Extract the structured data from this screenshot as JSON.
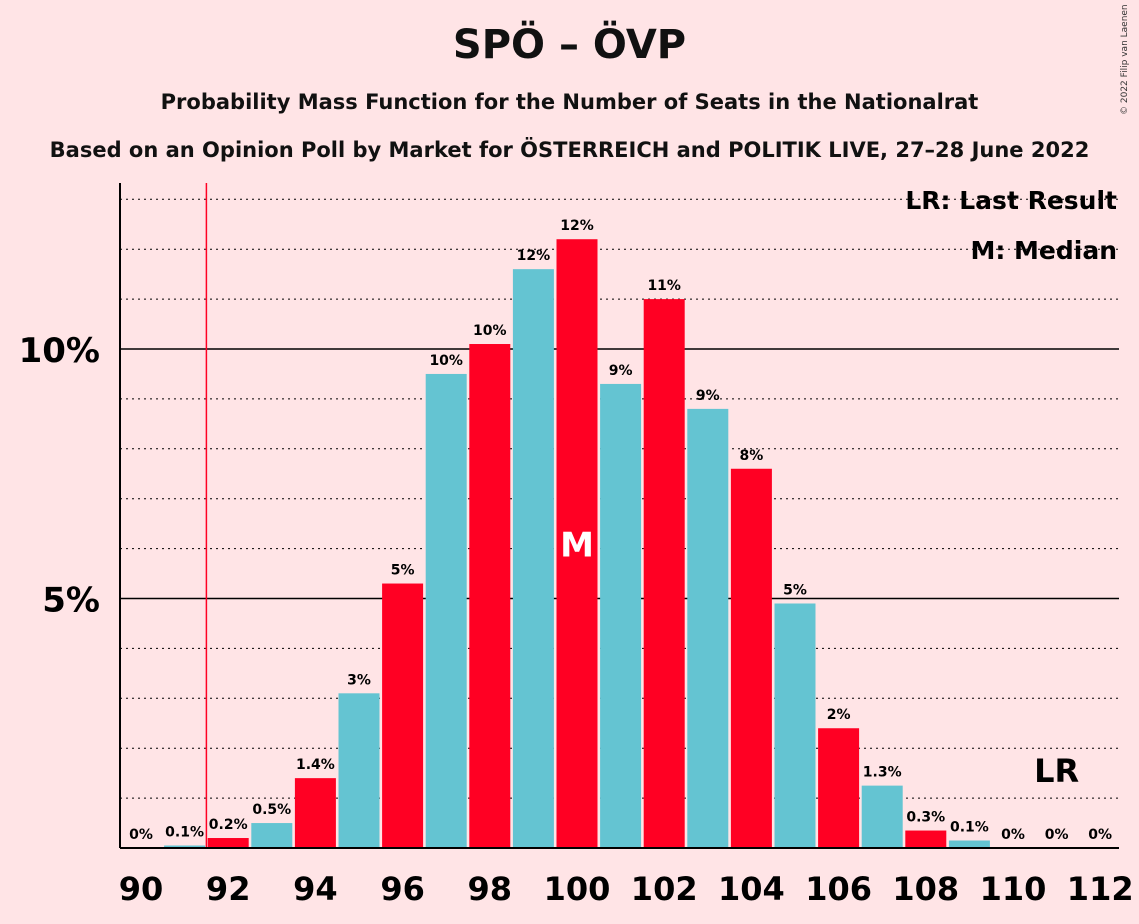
{
  "title": "SPÖ – ÖVP",
  "subtitle": "Probability Mass Function for the Number of Seats in the Nationalrat",
  "subtitle2": "Based on an Opinion Poll by Market for ÖSTERREICH and POLITIK LIVE, 27–28 June 2022",
  "copyright": "© 2022 Filip van Laenen",
  "legend": {
    "last_result": "LR: Last Result",
    "median": "M: Median"
  },
  "colors": {
    "red": "#ff0023",
    "cyan": "#64c4d2",
    "background": "#ffe4e6",
    "lr_line": "#ff0023"
  },
  "chart_data": {
    "type": "bar",
    "x": [
      90,
      91,
      92,
      93,
      94,
      95,
      96,
      97,
      98,
      99,
      100,
      101,
      102,
      103,
      104,
      105,
      106,
      107,
      108,
      109,
      110,
      111,
      112
    ],
    "values": [
      0,
      0.05,
      0.2,
      0.5,
      1.4,
      3.1,
      5.3,
      9.5,
      10.1,
      11.6,
      12.2,
      9.3,
      11.0,
      8.8,
      7.6,
      4.9,
      2.4,
      1.25,
      0.35,
      0.15,
      0,
      0,
      0
    ],
    "labels": [
      "0%",
      "0.1%",
      "0.2%",
      "0.5%",
      "1.4%",
      "3%",
      "5%",
      "10%",
      "10%",
      "12%",
      "12%",
      "9%",
      "11%",
      "9%",
      "8%",
      "5%",
      "2%",
      "1.3%",
      "0.3%",
      "0.1%",
      "0%",
      "0%",
      "0%"
    ],
    "bar_colors": [
      "cyan",
      "cyan",
      "red",
      "cyan",
      "red",
      "cyan",
      "red",
      "cyan",
      "red",
      "cyan",
      "red",
      "cyan",
      "red",
      "cyan",
      "red",
      "cyan",
      "red",
      "cyan",
      "red",
      "cyan",
      "red",
      "cyan",
      "red"
    ],
    "x_ticks": [
      90,
      92,
      94,
      96,
      98,
      100,
      102,
      104,
      106,
      108,
      110,
      112
    ],
    "y_ticks": [
      {
        "value": 5,
        "label": "5%"
      },
      {
        "value": 10,
        "label": "10%"
      }
    ],
    "ylim": [
      0,
      13.3
    ],
    "gridlines_dotted_every": 1,
    "median": {
      "x": 100,
      "label": "M"
    },
    "last_result": {
      "x": 91.5,
      "label_x": 111,
      "label": "LR"
    }
  }
}
